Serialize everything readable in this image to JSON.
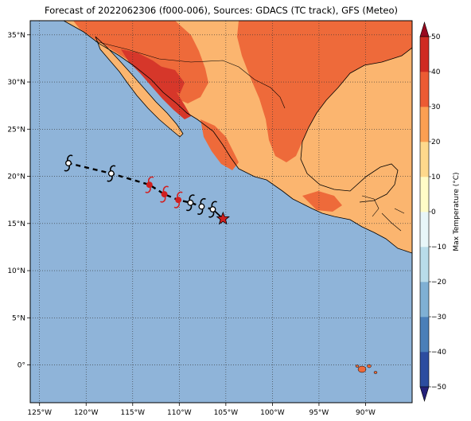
{
  "title": "Forecast of 2022062306 (f000-006), Sources: GDACS (TC track), GFS (Meteo)",
  "colors": {
    "ocean": "#8fb4d9",
    "land_20_30": "#fbb56f",
    "land_30_40": "#ee6a3a",
    "land_40_50": "#d6372a",
    "track": "#000000",
    "forecast_symbol": "#d11f1f",
    "observed_symbol": "#ffffff",
    "current_position_star": "#d11f1f"
  },
  "axes": {
    "lon_ticks": [
      "125°W",
      "120°W",
      "115°W",
      "110°W",
      "105°W",
      "100°W",
      "95°W",
      "90°W"
    ],
    "lat_ticks": [
      "35°N",
      "30°N",
      "25°N",
      "20°N",
      "15°N",
      "10°N",
      "5°N",
      "0°"
    ],
    "lon_range": [
      -126,
      -85
    ],
    "lat_range": [
      -4,
      36.5
    ],
    "grid": "dotted"
  },
  "colorbar": {
    "label": "Max Temperature (°C)",
    "ticks": [
      "50",
      "40",
      "30",
      "20",
      "10",
      "0",
      "−10",
      "−20",
      "−30",
      "−40",
      "−50"
    ],
    "range": [
      -50,
      50
    ],
    "extend": "both",
    "colors": [
      "#24217a",
      "#2c4da0",
      "#4a7fb9",
      "#7fb0d4",
      "#b9dcea",
      "#e8f6f9",
      "#fffcc7",
      "#fed98c",
      "#fb9f52",
      "#ec5b33",
      "#cf2a22",
      "#98091f"
    ]
  },
  "track": {
    "observed": [
      {
        "lon": -105.3,
        "lat": 15.5
      },
      {
        "lon": -106.4,
        "lat": 16.5
      }
    ],
    "forecast": [
      {
        "lon": -106.4,
        "lat": 16.5
      },
      {
        "lon": -107.6,
        "lat": 16.8
      },
      {
        "lon": -108.8,
        "lat": 17.2
      },
      {
        "lon": -110.1,
        "lat": 17.5
      },
      {
        "lon": -111.6,
        "lat": 18.1
      },
      {
        "lon": -113.2,
        "lat": 19.1
      },
      {
        "lon": -117.3,
        "lat": 20.3
      },
      {
        "lon": -121.9,
        "lat": 21.4
      }
    ],
    "symbols": [
      {
        "lon": -106.4,
        "lat": 16.5,
        "kind": "observed"
      },
      {
        "lon": -107.6,
        "lat": 16.8,
        "kind": "observed"
      },
      {
        "lon": -108.8,
        "lat": 17.2,
        "kind": "observed"
      },
      {
        "lon": -110.1,
        "lat": 17.5,
        "kind": "forecast"
      },
      {
        "lon": -111.6,
        "lat": 18.1,
        "kind": "forecast"
      },
      {
        "lon": -113.2,
        "lat": 19.1,
        "kind": "forecast"
      },
      {
        "lon": -117.3,
        "lat": 20.3,
        "kind": "observed"
      },
      {
        "lon": -121.9,
        "lat": 21.4,
        "kind": "observed"
      }
    ],
    "current_position": {
      "lon": -105.3,
      "lat": 15.5
    }
  }
}
